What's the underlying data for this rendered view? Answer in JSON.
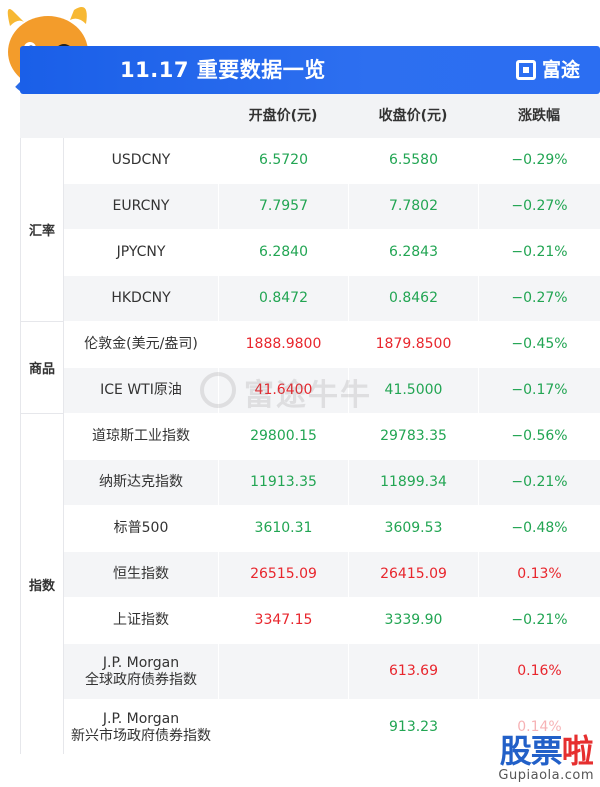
{
  "header": {
    "title": "11.17 重要数据一览",
    "brand": "富途"
  },
  "columns": {
    "open": "开盘价(元)",
    "close": "收盘价(元)",
    "change": "涨跌幅"
  },
  "groups": {
    "fx": "汇率",
    "commodity": "商品",
    "index": "指数"
  },
  "rows": [
    {
      "name": "USDCNY",
      "open": "6.5720",
      "close": "6.5580",
      "change": "−0.29%"
    },
    {
      "name": "EURCNY",
      "open": "7.7957",
      "close": "7.7802",
      "change": "−0.27%"
    },
    {
      "name": "JPYCNY",
      "open": "6.2840",
      "close": "6.2843",
      "change": "−0.21%"
    },
    {
      "name": "HKDCNY",
      "open": "0.8472",
      "close": "0.8462",
      "change": "−0.27%"
    },
    {
      "name": "伦敦金(美元/盎司)",
      "open": "1888.9800",
      "close": "1879.8500",
      "change": "−0.45%"
    },
    {
      "name": "ICE WTI原油",
      "open": "41.6400",
      "close": "41.5000",
      "change": "−0.17%"
    },
    {
      "name": "道琼斯工业指数",
      "open": "29800.15",
      "close": "29783.35",
      "change": "−0.56%"
    },
    {
      "name": "纳斯达克指数",
      "open": "11913.35",
      "close": "11899.34",
      "change": "−0.21%"
    },
    {
      "name": "标普500",
      "open": "3610.31",
      "close": "3609.53",
      "change": "−0.48%"
    },
    {
      "name": "恒生指数",
      "open": "26515.09",
      "close": "26415.09",
      "change": "0.13%"
    },
    {
      "name": "上证指数",
      "open": "3347.15",
      "close": "3339.90",
      "change": "−0.21%"
    },
    {
      "name_l1": "J.P. Morgan",
      "name_l2": "全球政府债券指数",
      "open": "",
      "close": "613.69",
      "change": "0.16%"
    },
    {
      "name_l1": "J.P. Morgan",
      "name_l2": "新兴市场政府债券指数",
      "open": "",
      "close": "913.23",
      "change": "0.14%"
    }
  ],
  "watermark": "富途牛牛",
  "corner": {
    "logo_a": "股票",
    "logo_b": "啦",
    "url": "Gupiaola.com"
  },
  "colors": {
    "header_blue": "#2d6ff0",
    "up_red": "#e8262d",
    "down_green": "#22a553"
  }
}
